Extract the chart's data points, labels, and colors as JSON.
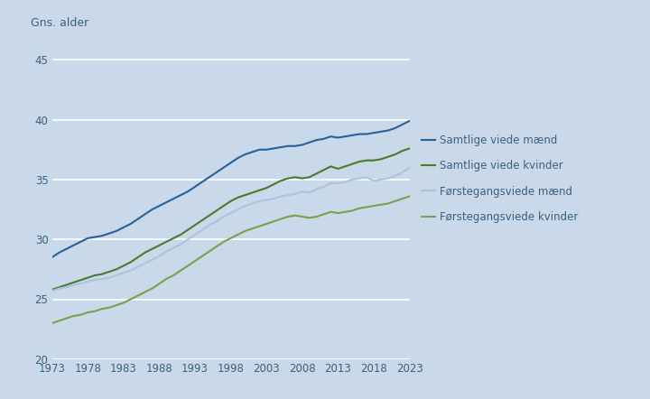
{
  "years": [
    1973,
    1974,
    1975,
    1976,
    1977,
    1978,
    1979,
    1980,
    1981,
    1982,
    1983,
    1984,
    1985,
    1986,
    1987,
    1988,
    1989,
    1990,
    1991,
    1992,
    1993,
    1994,
    1995,
    1996,
    1997,
    1998,
    1999,
    2000,
    2001,
    2002,
    2003,
    2004,
    2005,
    2006,
    2007,
    2008,
    2009,
    2010,
    2011,
    2012,
    2013,
    2014,
    2015,
    2016,
    2017,
    2018,
    2019,
    2020,
    2021,
    2022,
    2023
  ],
  "samtlige_maend": [
    28.5,
    28.9,
    29.2,
    29.5,
    29.8,
    30.1,
    30.2,
    30.3,
    30.5,
    30.7,
    31.0,
    31.3,
    31.7,
    32.1,
    32.5,
    32.8,
    33.1,
    33.4,
    33.7,
    34.0,
    34.4,
    34.8,
    35.2,
    35.6,
    36.0,
    36.4,
    36.8,
    37.1,
    37.3,
    37.5,
    37.5,
    37.6,
    37.7,
    37.8,
    37.8,
    37.9,
    38.1,
    38.3,
    38.4,
    38.6,
    38.5,
    38.6,
    38.7,
    38.8,
    38.8,
    38.9,
    39.0,
    39.1,
    39.3,
    39.6,
    39.9
  ],
  "samtlige_kvinder": [
    25.8,
    26.0,
    26.2,
    26.4,
    26.6,
    26.8,
    27.0,
    27.1,
    27.3,
    27.5,
    27.8,
    28.1,
    28.5,
    28.9,
    29.2,
    29.5,
    29.8,
    30.1,
    30.4,
    30.8,
    31.2,
    31.6,
    32.0,
    32.4,
    32.8,
    33.2,
    33.5,
    33.7,
    33.9,
    34.1,
    34.3,
    34.6,
    34.9,
    35.1,
    35.2,
    35.1,
    35.2,
    35.5,
    35.8,
    36.1,
    35.9,
    36.1,
    36.3,
    36.5,
    36.6,
    36.6,
    36.7,
    36.9,
    37.1,
    37.4,
    37.6
  ],
  "forstegang_maend": [
    25.7,
    25.9,
    26.0,
    26.2,
    26.3,
    26.5,
    26.6,
    26.7,
    26.8,
    27.0,
    27.2,
    27.4,
    27.7,
    28.0,
    28.3,
    28.6,
    29.0,
    29.3,
    29.6,
    30.0,
    30.4,
    30.8,
    31.2,
    31.5,
    31.9,
    32.2,
    32.5,
    32.8,
    33.0,
    33.2,
    33.3,
    33.4,
    33.6,
    33.7,
    33.8,
    34.0,
    33.9,
    34.2,
    34.4,
    34.7,
    34.7,
    34.8,
    35.0,
    35.1,
    35.2,
    34.9,
    35.0,
    35.1,
    35.3,
    35.6,
    36.0
  ],
  "forstegang_kvinder": [
    23.0,
    23.2,
    23.4,
    23.6,
    23.7,
    23.9,
    24.0,
    24.2,
    24.3,
    24.5,
    24.7,
    25.0,
    25.3,
    25.6,
    25.9,
    26.3,
    26.7,
    27.0,
    27.4,
    27.8,
    28.2,
    28.6,
    29.0,
    29.4,
    29.8,
    30.1,
    30.4,
    30.7,
    30.9,
    31.1,
    31.3,
    31.5,
    31.7,
    31.9,
    32.0,
    31.9,
    31.8,
    31.9,
    32.1,
    32.3,
    32.2,
    32.3,
    32.4,
    32.6,
    32.7,
    32.8,
    32.9,
    33.0,
    33.2,
    33.4,
    33.6
  ],
  "bg_color": "#c9d9ea",
  "color_samtlige_maend": "#2a6099",
  "color_samtlige_kvinder": "#4a7a2c",
  "color_forstegang_maend": "#aac4de",
  "color_forstegang_kvinder": "#7aa04a",
  "ylabel": "Gns. alder",
  "ylim": [
    20,
    46
  ],
  "yticks": [
    20,
    25,
    30,
    35,
    40,
    45
  ],
  "xticks": [
    1973,
    1978,
    1983,
    1988,
    1993,
    1998,
    2003,
    2008,
    2013,
    2018,
    2023
  ],
  "legend_labels": [
    "Samtlige viede mænd",
    "Samtlige viede kvinder",
    "Førstegangsviede mænd",
    "Førstegangsviede kvinder"
  ],
  "legend_colors": [
    "#2a6099",
    "#4a7a2c",
    "#aac4de",
    "#7aa04a"
  ],
  "tick_color": "#3a6080",
  "grid_color": "#ffffff",
  "linewidth": 1.5
}
